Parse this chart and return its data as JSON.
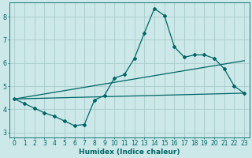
{
  "xlabel": "Humidex (Indice chaleur)",
  "ylabel": "",
  "bg_color": "#cce8e8",
  "line_color": "#006666",
  "grid_color": "#aacccc",
  "xlim": [
    -0.5,
    23.5
  ],
  "ylim": [
    2.8,
    8.6
  ],
  "xticks": [
    0,
    1,
    2,
    3,
    4,
    5,
    6,
    7,
    8,
    9,
    10,
    11,
    12,
    13,
    14,
    15,
    16,
    17,
    18,
    19,
    20,
    21,
    22,
    23
  ],
  "yticks": [
    3,
    4,
    5,
    6,
    7,
    8
  ],
  "line1_x": [
    0,
    1,
    2,
    3,
    4,
    5,
    6,
    7,
    8,
    9,
    10,
    11,
    12,
    13,
    14,
    15,
    16,
    17,
    18,
    19,
    20,
    21,
    22,
    23
  ],
  "line1_y": [
    4.45,
    4.25,
    4.05,
    3.85,
    3.7,
    3.5,
    3.3,
    3.35,
    4.4,
    4.6,
    5.35,
    5.5,
    6.2,
    7.3,
    8.35,
    8.05,
    6.7,
    6.25,
    6.35,
    6.35,
    6.2,
    5.75,
    5.0,
    4.7
  ],
  "line2_x": [
    0,
    23
  ],
  "line2_y": [
    4.45,
    4.7
  ],
  "line3_x": [
    0,
    23
  ],
  "line3_y": [
    4.45,
    6.1
  ],
  "xlabel_fontsize": 6.5,
  "tick_fontsize": 5.5
}
